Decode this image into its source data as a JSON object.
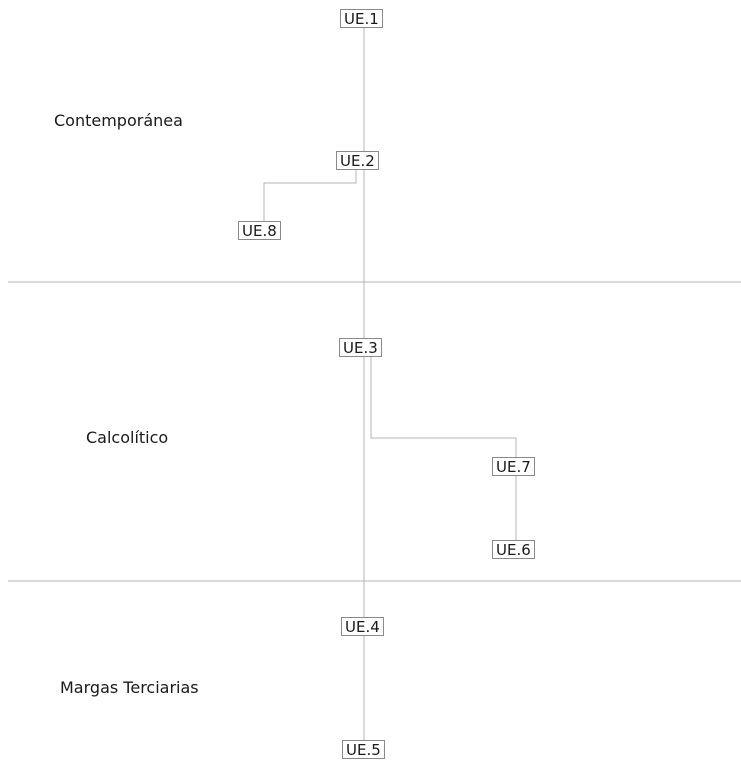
{
  "phases": [
    {
      "id": "contemporanea",
      "label": "Contemporánea"
    },
    {
      "id": "calcolitico",
      "label": "Calcolítico"
    },
    {
      "id": "margas",
      "label": "Margas Terciarias"
    }
  ],
  "units": [
    {
      "id": "ue1",
      "label": "UE.1"
    },
    {
      "id": "ue2",
      "label": "UE.2"
    },
    {
      "id": "ue8",
      "label": "UE.8"
    },
    {
      "id": "ue3",
      "label": "UE.3"
    },
    {
      "id": "ue7",
      "label": "UE.7"
    },
    {
      "id": "ue6",
      "label": "UE.6"
    },
    {
      "id": "ue4",
      "label": "UE.4"
    },
    {
      "id": "ue5",
      "label": "UE.5"
    }
  ],
  "colors": {
    "line": "#b5b5b5",
    "node_border": "#8a8a8a",
    "text": "#1a1a1a"
  }
}
